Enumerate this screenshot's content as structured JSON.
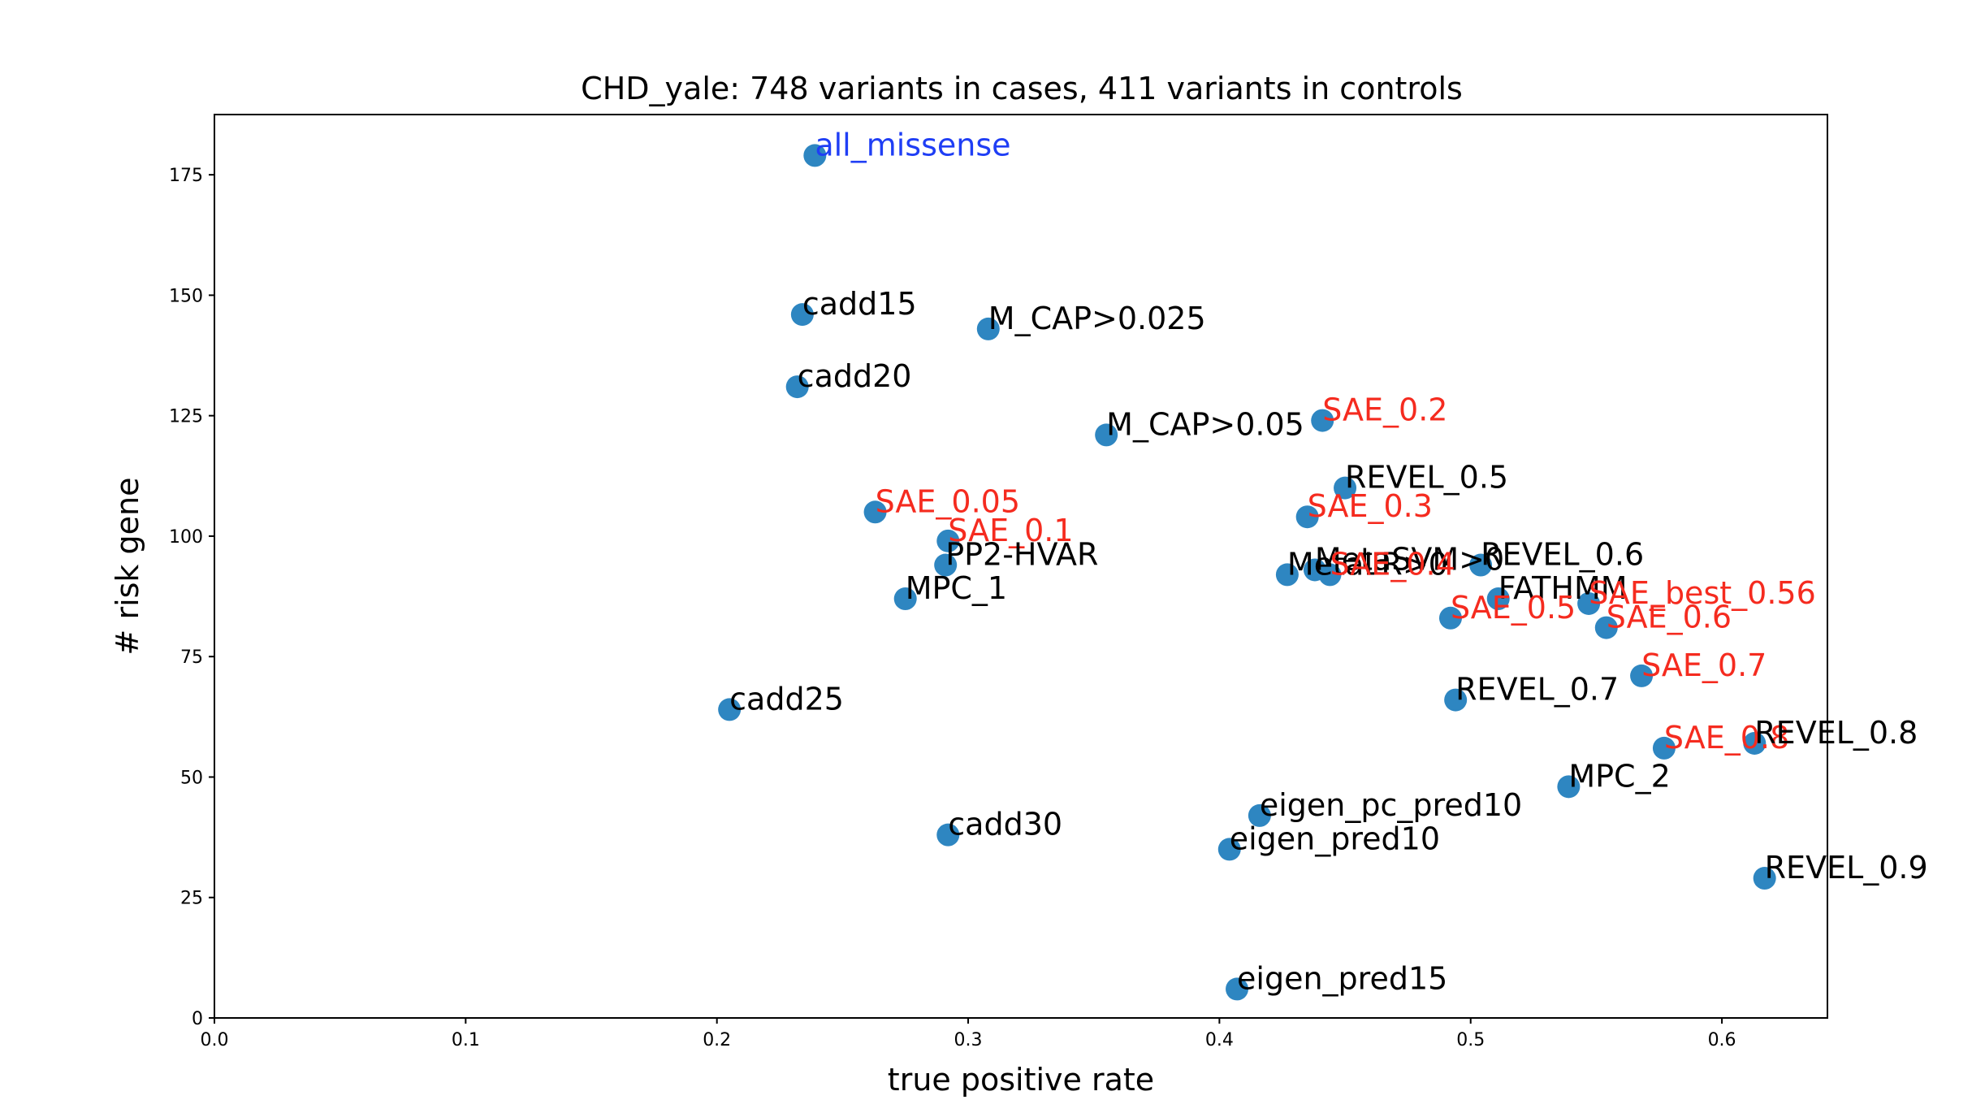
{
  "chart_data": {
    "type": "scatter",
    "title": "CHD_yale: 748 variants in cases, 411 variants in controls",
    "xlabel": "true positive rate",
    "ylabel": "# risk gene",
    "xlim": [
      0.0,
      0.642
    ],
    "ylim": [
      0,
      187.5
    ],
    "xticks": [
      "0.0",
      "0.1",
      "0.2",
      "0.3",
      "0.4",
      "0.5",
      "0.6"
    ],
    "yticks": [
      "0",
      "25",
      "50",
      "75",
      "100",
      "125",
      "150",
      "175"
    ],
    "grid": false,
    "marker_color": "#2e86c1",
    "label_colors": {
      "default": "#000000",
      "sae": "#f52b1f",
      "baseline": "#1f3ef5"
    },
    "points": [
      {
        "label": "all_missense",
        "x": 0.239,
        "y": 179,
        "label_color": "baseline"
      },
      {
        "label": "cadd15",
        "x": 0.234,
        "y": 146,
        "label_color": "default"
      },
      {
        "label": "cadd20",
        "x": 0.232,
        "y": 131,
        "label_color": "default"
      },
      {
        "label": "cadd25",
        "x": 0.205,
        "y": 64,
        "label_color": "default"
      },
      {
        "label": "cadd30",
        "x": 0.292,
        "y": 38,
        "label_color": "default"
      },
      {
        "label": "M_CAP>0.025",
        "x": 0.308,
        "y": 143,
        "label_color": "default"
      },
      {
        "label": "M_CAP>0.05",
        "x": 0.355,
        "y": 121,
        "label_color": "default"
      },
      {
        "label": "SAE_0.05",
        "x": 0.263,
        "y": 105,
        "label_color": "sae"
      },
      {
        "label": "SAE_0.1",
        "x": 0.292,
        "y": 99,
        "label_color": "sae"
      },
      {
        "label": "PP2-HVAR",
        "x": 0.291,
        "y": 94,
        "label_color": "default"
      },
      {
        "label": "MPC_1",
        "x": 0.275,
        "y": 87,
        "label_color": "default"
      },
      {
        "label": "SAE_0.2",
        "x": 0.441,
        "y": 124,
        "label_color": "sae"
      },
      {
        "label": "REVEL_0.5",
        "x": 0.45,
        "y": 110,
        "label_color": "default"
      },
      {
        "label": "SAE_0.3",
        "x": 0.435,
        "y": 104,
        "label_color": "sae"
      },
      {
        "label": "MetaLR>0",
        "x": 0.427,
        "y": 92,
        "label_color": "default"
      },
      {
        "label": "MetaSVM>0",
        "x": 0.438,
        "y": 93,
        "label_color": "default"
      },
      {
        "label": "SAE_0.4",
        "x": 0.444,
        "y": 92,
        "label_color": "sae"
      },
      {
        "label": "REVEL_0.6",
        "x": 0.504,
        "y": 94,
        "label_color": "default"
      },
      {
        "label": "FATHMM",
        "x": 0.511,
        "y": 87,
        "label_color": "default"
      },
      {
        "label": "SAE_0.5",
        "x": 0.492,
        "y": 83,
        "label_color": "sae"
      },
      {
        "label": "SAE_best_0.56",
        "x": 0.547,
        "y": 86,
        "label_color": "sae"
      },
      {
        "label": "SAE_0.6",
        "x": 0.554,
        "y": 81,
        "label_color": "sae"
      },
      {
        "label": "SAE_0.7",
        "x": 0.568,
        "y": 71,
        "label_color": "sae"
      },
      {
        "label": "REVEL_0.7",
        "x": 0.494,
        "y": 66,
        "label_color": "default"
      },
      {
        "label": "SAE_0.8",
        "x": 0.577,
        "y": 56,
        "label_color": "sae"
      },
      {
        "label": "REVEL_0.8",
        "x": 0.613,
        "y": 57,
        "label_color": "default"
      },
      {
        "label": "MPC_2",
        "x": 0.539,
        "y": 48,
        "label_color": "default"
      },
      {
        "label": "eigen_pc_pred10",
        "x": 0.416,
        "y": 42,
        "label_color": "default"
      },
      {
        "label": "eigen_pred10",
        "x": 0.404,
        "y": 35,
        "label_color": "default"
      },
      {
        "label": "REVEL_0.9",
        "x": 0.617,
        "y": 29,
        "label_color": "default"
      },
      {
        "label": "eigen_pred15",
        "x": 0.407,
        "y": 6,
        "label_color": "default"
      }
    ]
  }
}
